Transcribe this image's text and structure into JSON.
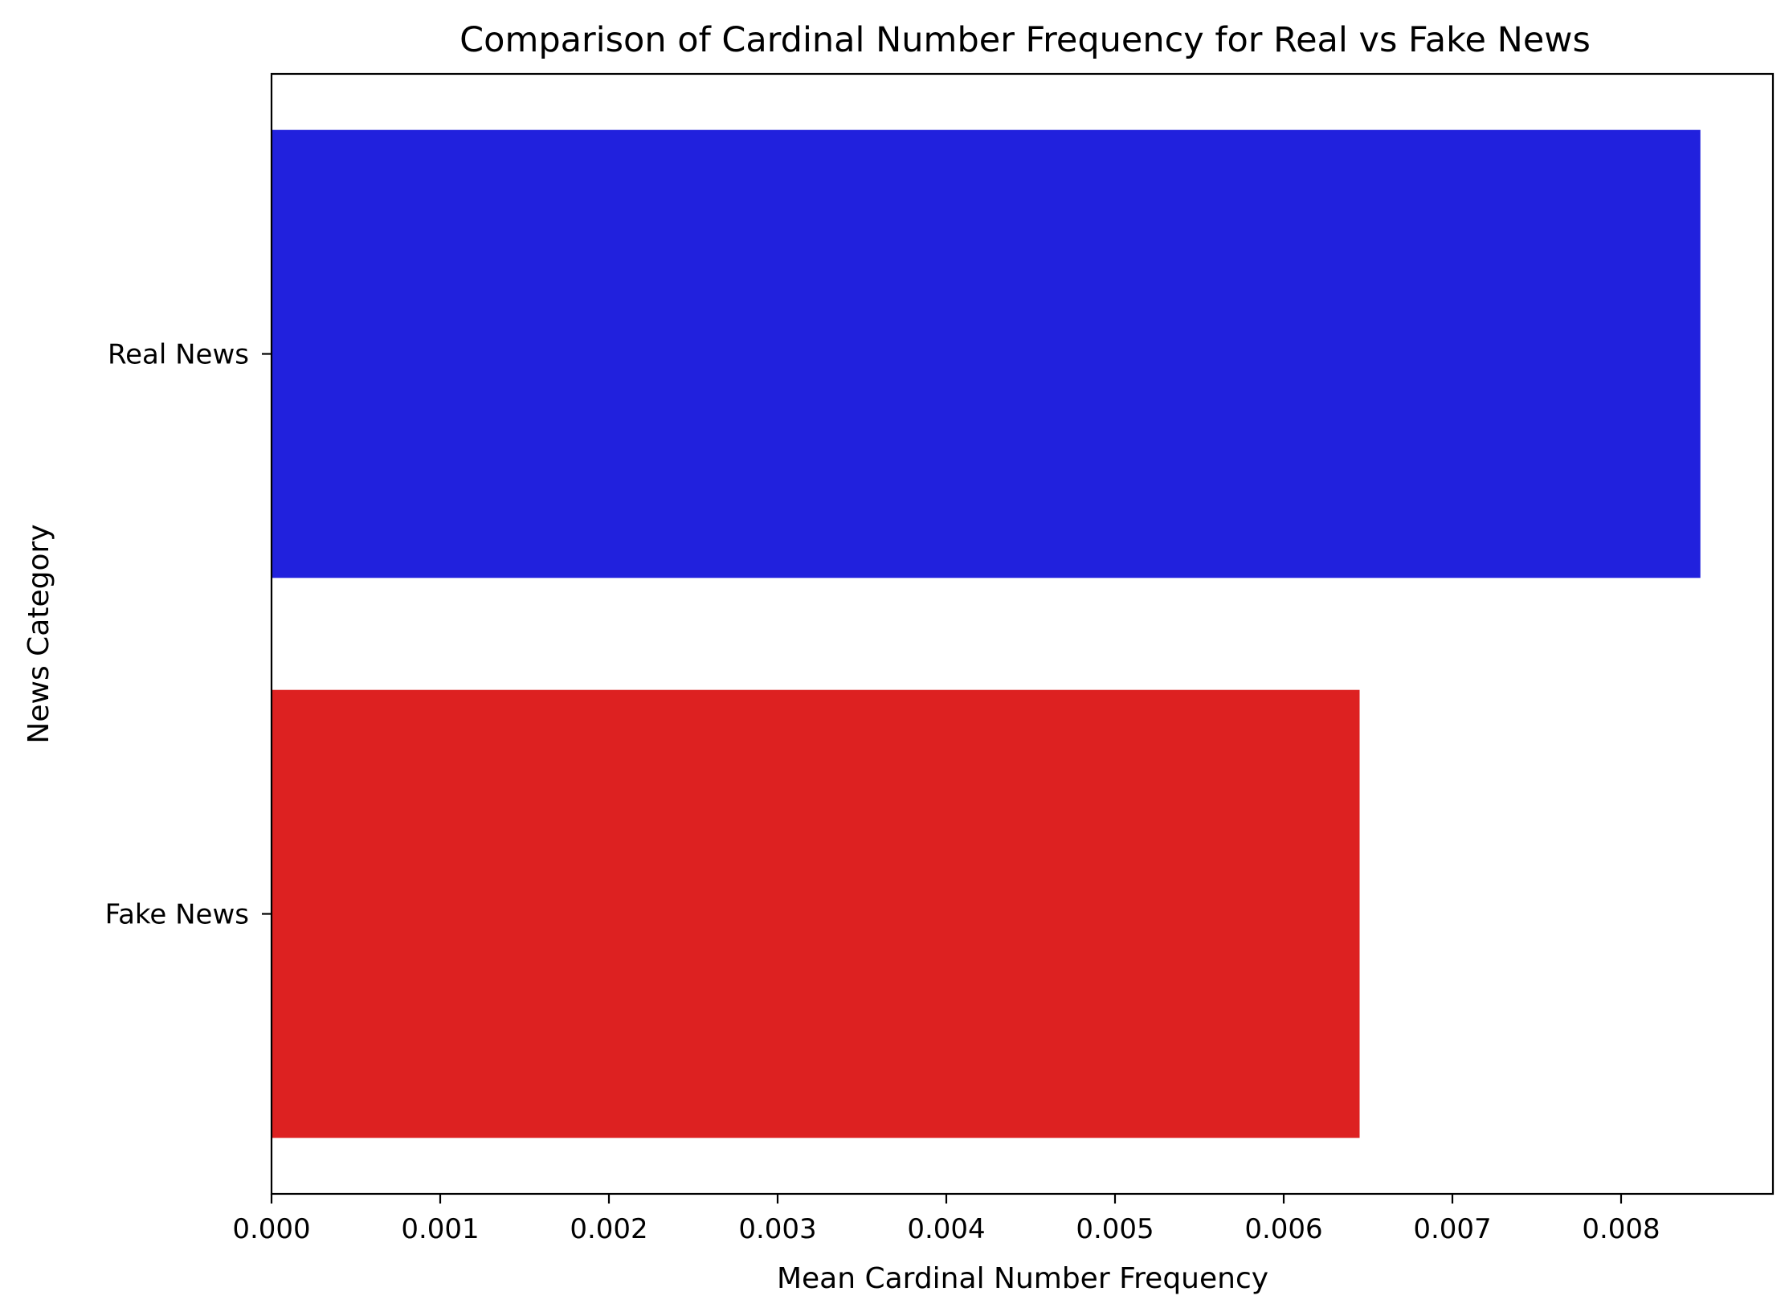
{
  "chart_data": {
    "type": "bar",
    "orientation": "horizontal",
    "title": "Comparison of Cardinal Number Frequency for Real vs Fake News",
    "xlabel": "Mean Cardinal Number Frequency",
    "ylabel": "News Category",
    "categories": [
      "Real News",
      "Fake News"
    ],
    "values": [
      0.00847,
      0.00645
    ],
    "colors": [
      "#2121dd",
      "#dd2121"
    ],
    "xlim": [
      0,
      0.0089
    ],
    "xticks": [
      0.0,
      0.001,
      0.002,
      0.003,
      0.004,
      0.005,
      0.006,
      0.007,
      0.008
    ],
    "xtick_labels": [
      "0.000",
      "0.001",
      "0.002",
      "0.003",
      "0.004",
      "0.005",
      "0.006",
      "0.007",
      "0.008"
    ],
    "grid": false,
    "legend": "none"
  }
}
